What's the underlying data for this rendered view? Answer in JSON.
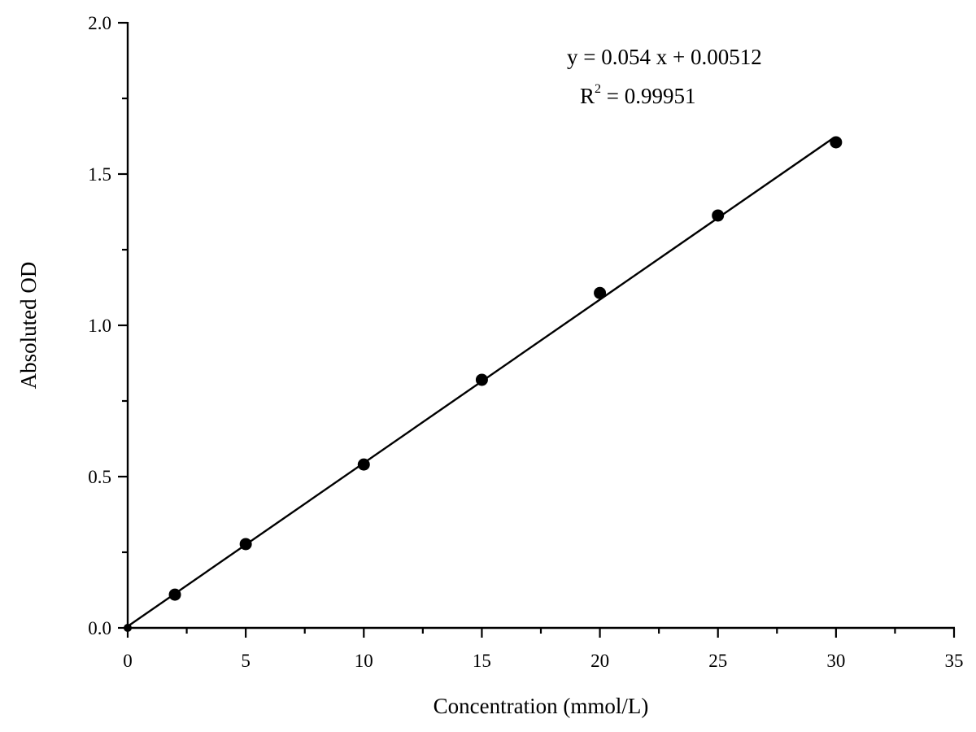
{
  "chart_data": {
    "type": "scatter",
    "title": "",
    "xlabel": "Concentration (mmol/L)",
    "ylabel": "Absoluted OD",
    "xlim": [
      0,
      35
    ],
    "ylim": [
      0,
      2.0
    ],
    "x_ticks": [
      0,
      5,
      10,
      15,
      20,
      25,
      30,
      35
    ],
    "x_tick_labels": [
      "0",
      "5",
      "10",
      "15",
      "20",
      "25",
      "30",
      "35"
    ],
    "x_minor_step": 2.5,
    "y_ticks": [
      0.0,
      0.5,
      1.0,
      1.5,
      2.0
    ],
    "y_tick_labels": [
      "0.0",
      "0.5",
      "1.0",
      "1.5",
      "2.0"
    ],
    "y_minor_step": 0.25,
    "grid": false,
    "legend": null,
    "series": [
      {
        "name": "Measured",
        "kind": "scatter",
        "marker": "filled-circle",
        "color": "#000000",
        "x": [
          0,
          2,
          5,
          10,
          15,
          20,
          25,
          30
        ],
        "y": [
          0.0,
          0.11,
          0.277,
          0.54,
          0.82,
          1.107,
          1.363,
          1.605
        ]
      },
      {
        "name": "Linear fit",
        "kind": "line",
        "color": "#000000",
        "slope": 0.054,
        "intercept": 0.00512,
        "x_range": [
          0,
          30
        ]
      }
    ],
    "annotations": [
      {
        "text": "y = 0.054 x + 0.00512",
        "position": "upper-right"
      },
      {
        "text": "R² = 0.99951",
        "position": "upper-right"
      }
    ]
  },
  "annotation": {
    "equation": "y = 0.054 x + 0.00512",
    "r2_prefix": "R",
    "r2_sup": "2",
    "r2_value": " = 0.99951"
  },
  "axes": {
    "xlabel": "Concentration (mmol/L)",
    "ylabel": "Absoluted OD"
  },
  "colors": {
    "ink": "#000000",
    "background": "#ffffff"
  }
}
